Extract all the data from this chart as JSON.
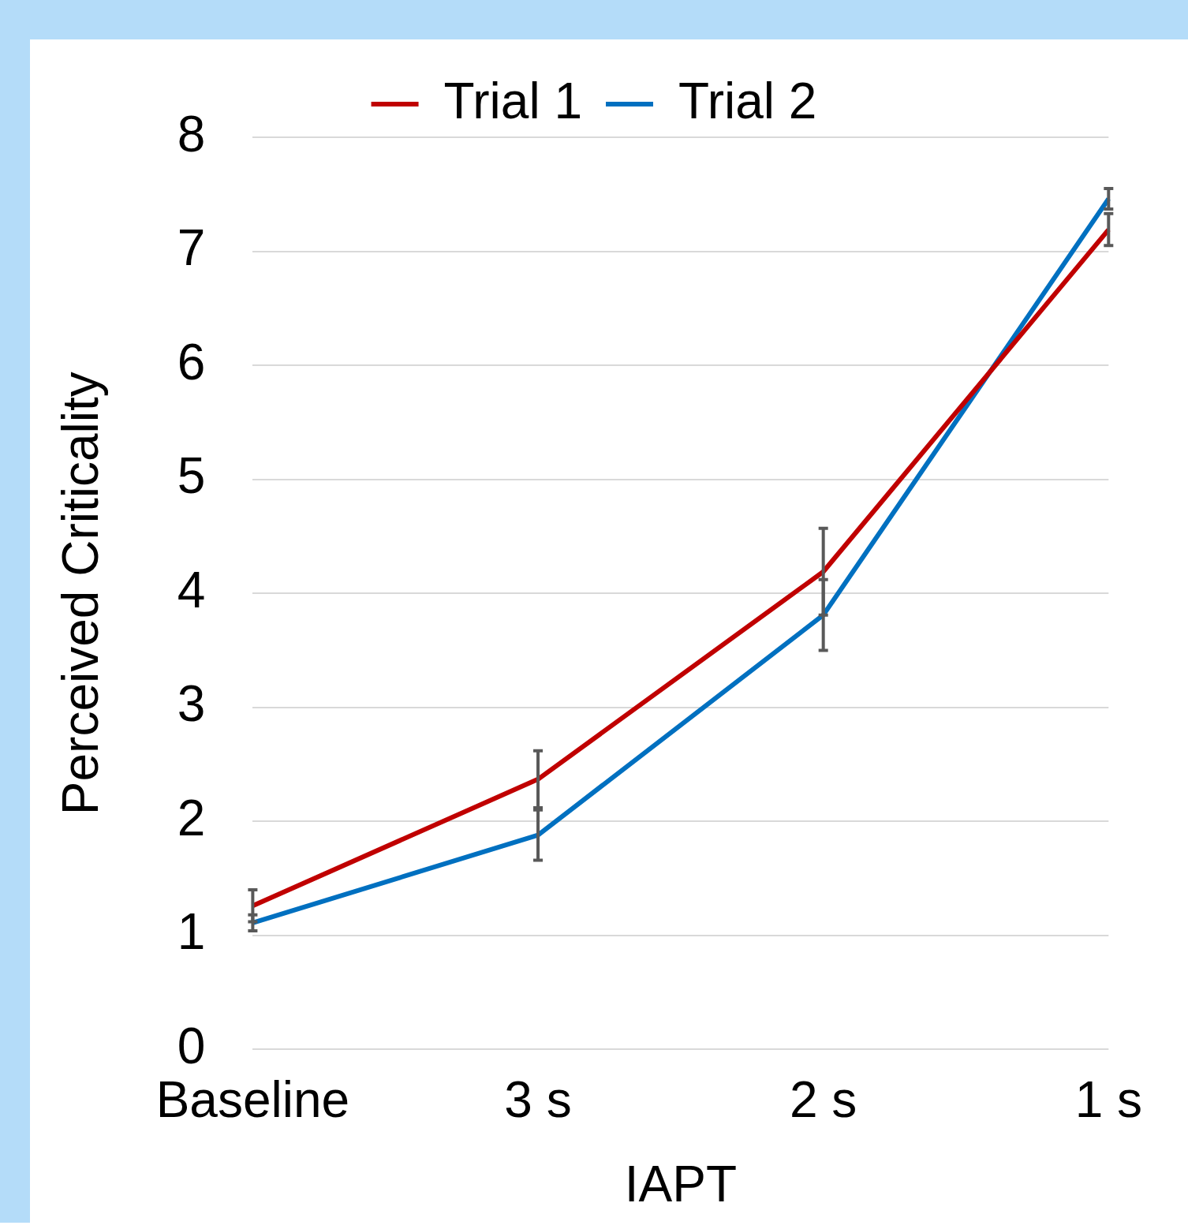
{
  "chart_data": {
    "type": "line",
    "xlabel": "IAPT",
    "ylabel": "Perceived Criticality",
    "categories": [
      "Baseline",
      "3 s",
      "2 s",
      "1 s"
    ],
    "series": [
      {
        "name": "Trial 1",
        "color": "#c00000",
        "values": [
          1.26,
          2.37,
          4.19,
          7.19
        ],
        "errors": [
          0.14,
          0.25,
          0.38,
          0.14
        ]
      },
      {
        "name": "Trial 2",
        "color": "#0070c0",
        "values": [
          1.11,
          1.88,
          3.81,
          7.46
        ],
        "errors": [
          0.07,
          0.22,
          0.31,
          0.09
        ]
      }
    ],
    "ylim": [
      0,
      8
    ],
    "yticks": [
      0,
      1,
      2,
      3,
      4,
      5,
      6,
      7,
      8
    ],
    "grid": "y",
    "legend": "top",
    "marker": "none",
    "line_style": "solid"
  }
}
